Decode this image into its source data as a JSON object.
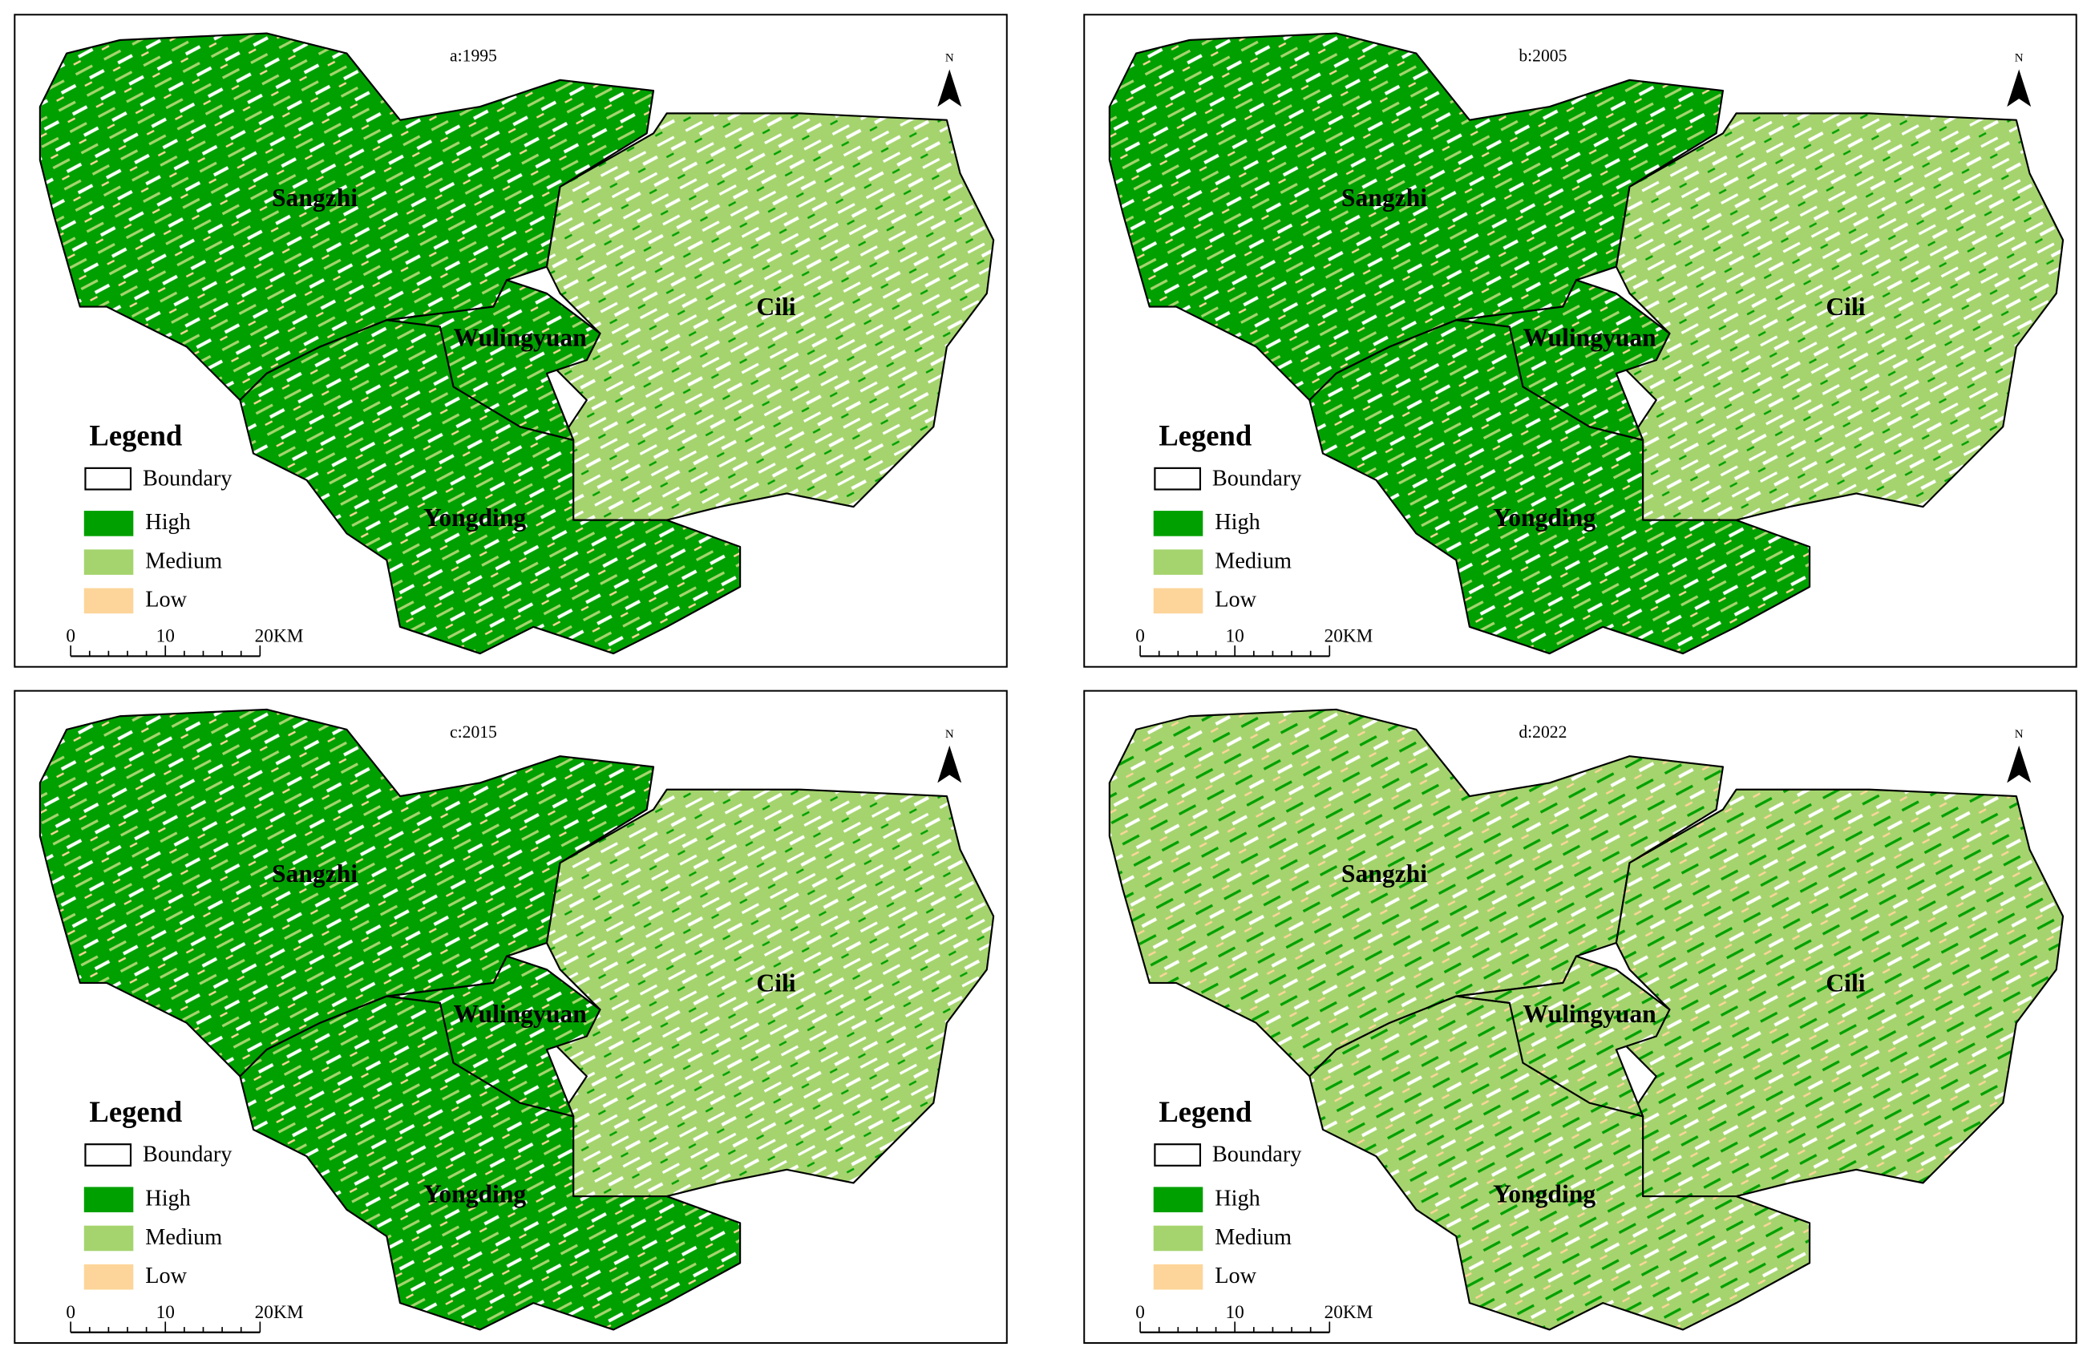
{
  "panels": [
    {
      "title": "a:1995"
    },
    {
      "title": "b:2005"
    },
    {
      "title": "c:2015"
    },
    {
      "title": "d:2022"
    }
  ],
  "north": "N",
  "regions": [
    "Sangzhi",
    "Wulingyuan",
    "Cili",
    "Yongding"
  ],
  "legend": {
    "title": "Legend",
    "boundary": "Boundary",
    "items": [
      {
        "label": "High",
        "color": "#00a000"
      },
      {
        "label": "Medium",
        "color": "#a5d46e"
      },
      {
        "label": "Low",
        "color": "#fdd59a"
      }
    ]
  },
  "scale_bar": {
    "ticks": [
      "0",
      "10",
      "20KM"
    ]
  }
}
